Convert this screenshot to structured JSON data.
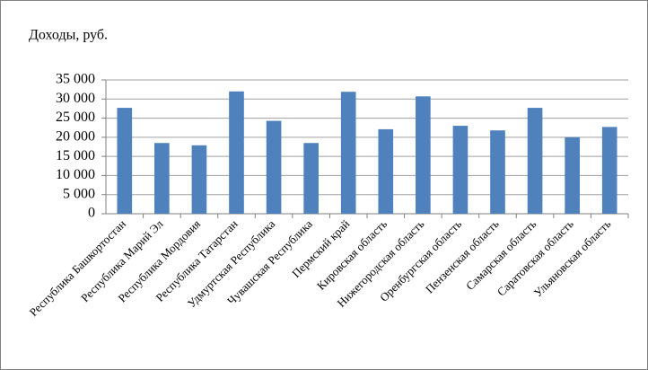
{
  "chart_data": {
    "type": "bar",
    "title": "Доходы, руб.",
    "categories": [
      "Республика Башкортостан",
      "Республика Марий Эл",
      "Республика Мордовия",
      "Республика Татарстан",
      "Удмуртская Республика",
      "Чувашская Республика",
      "Пермский край",
      "Кировская область",
      "Нижегородская область",
      "Оренбургская область",
      "Пензенская область",
      "Самарская область",
      "Саратовская область",
      "Ульяновская область"
    ],
    "values": [
      27700,
      18500,
      17900,
      32000,
      24300,
      18500,
      31900,
      22100,
      30700,
      23000,
      21800,
      27700,
      20000,
      22700
    ],
    "color": "#4f81bd",
    "ylim": [
      0,
      35000
    ],
    "yticks": [
      0,
      {
        "value": 5000,
        "label": "5 000"
      },
      {
        "value": 10000,
        "label": "10 000"
      },
      {
        "value": 15000,
        "label": "15 000"
      },
      {
        "value": 20000,
        "label": "20 000"
      },
      {
        "value": 25000,
        "label": "25 000"
      },
      {
        "value": 30000,
        "label": "30 000"
      },
      {
        "value": 35000,
        "label": "35 000"
      }
    ],
    "grid": true
  }
}
